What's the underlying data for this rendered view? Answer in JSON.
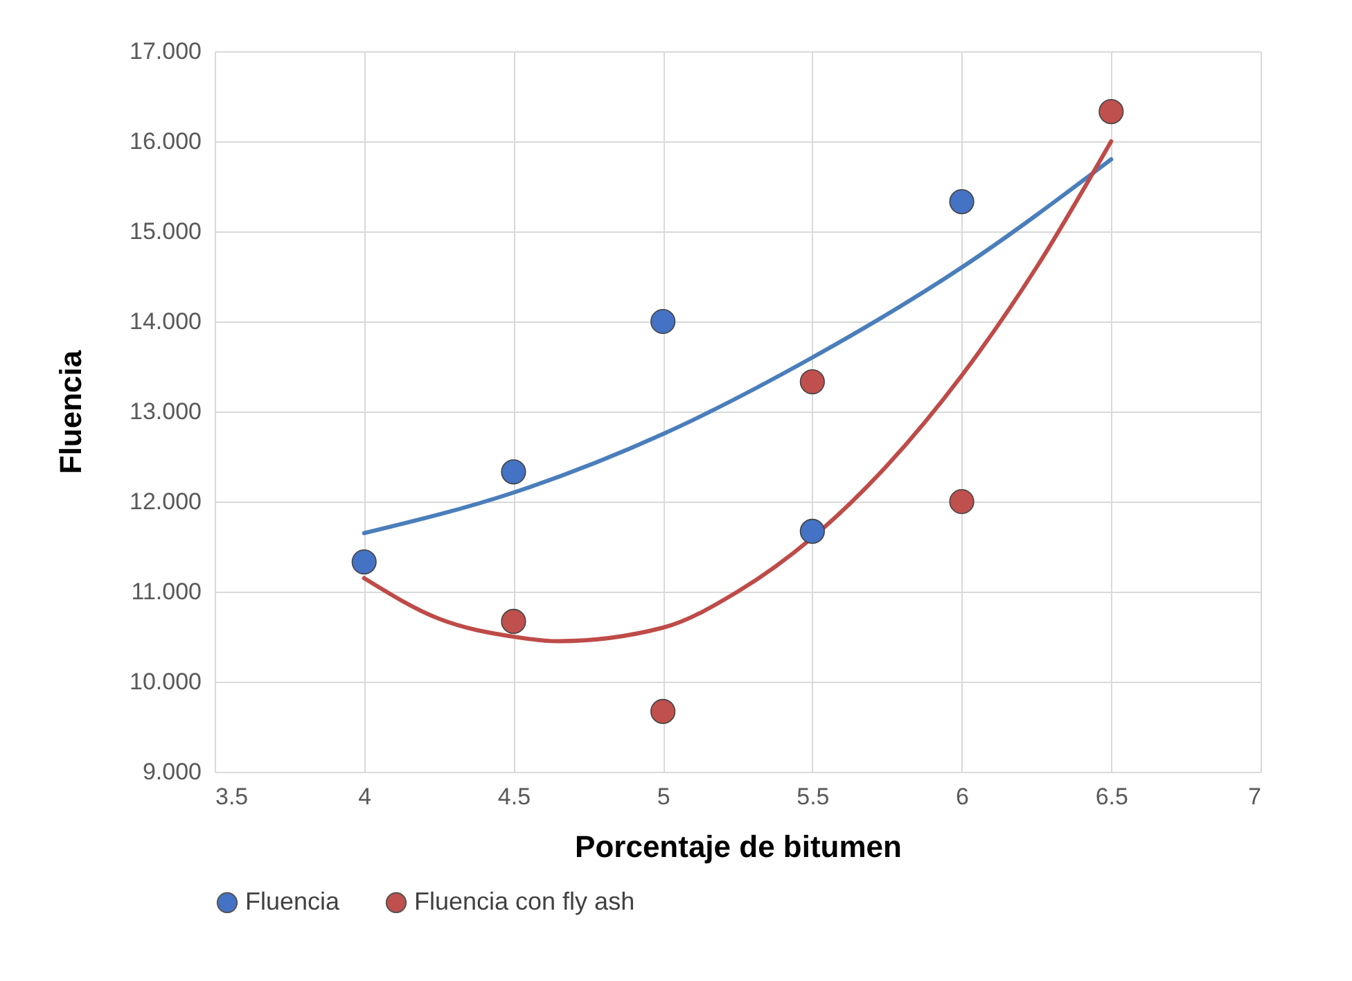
{
  "chart_data": {
    "type": "scatter",
    "xlabel": "Porcentaje de bitumen",
    "ylabel": "Fluencia",
    "x": [
      4,
      4.5,
      5,
      5.5,
      6,
      6.5
    ],
    "series": [
      {
        "name": "Fluencia",
        "color": "#4472c4",
        "marker": "circle",
        "values": [
          11.33,
          12.33,
          14.0,
          11.67,
          15.33,
          null
        ]
      },
      {
        "name": "Fluencia con fly ash",
        "color": "#c0504d",
        "marker": "circle",
        "values": [
          null,
          10.67,
          9.67,
          13.33,
          12.0,
          16.33
        ]
      },
      {
        "type": "line",
        "color": "#4a7ebb",
        "marker": "none",
        "x": [
          4,
          4.5,
          5,
          5.5,
          6,
          6.5
        ],
        "values": [
          11.65,
          12.1,
          12.75,
          13.6,
          14.6,
          15.8
        ]
      },
      {
        "type": "line",
        "color": "#be4b48",
        "marker": "none",
        "x": [
          4,
          4.25,
          4.5,
          4.65,
          5,
          5.25,
          5.5,
          5.75,
          6,
          6.25,
          6.5
        ],
        "values": [
          11.15,
          10.7,
          10.5,
          10.45,
          10.6,
          11.0,
          11.6,
          12.4,
          13.4,
          14.6,
          16.0
        ]
      }
    ],
    "xlim": [
      3.5,
      7
    ],
    "xticks": [
      3.5,
      4,
      4.5,
      5,
      5.5,
      6,
      6.5,
      7
    ],
    "ylim": [
      9,
      17
    ],
    "yticks": [
      {
        "value": 9,
        "label": "9.000"
      },
      {
        "value": 10,
        "label": "10.000"
      },
      {
        "value": 11,
        "label": "11.000"
      },
      {
        "value": 12,
        "label": "12.000"
      },
      {
        "value": 13,
        "label": "13.000"
      },
      {
        "value": 14,
        "label": "14.000"
      },
      {
        "value": 15,
        "label": "15.000"
      },
      {
        "value": 16,
        "label": "16.000"
      },
      {
        "value": 17,
        "label": "17.000"
      }
    ],
    "grid": true,
    "legend": "bottom"
  }
}
